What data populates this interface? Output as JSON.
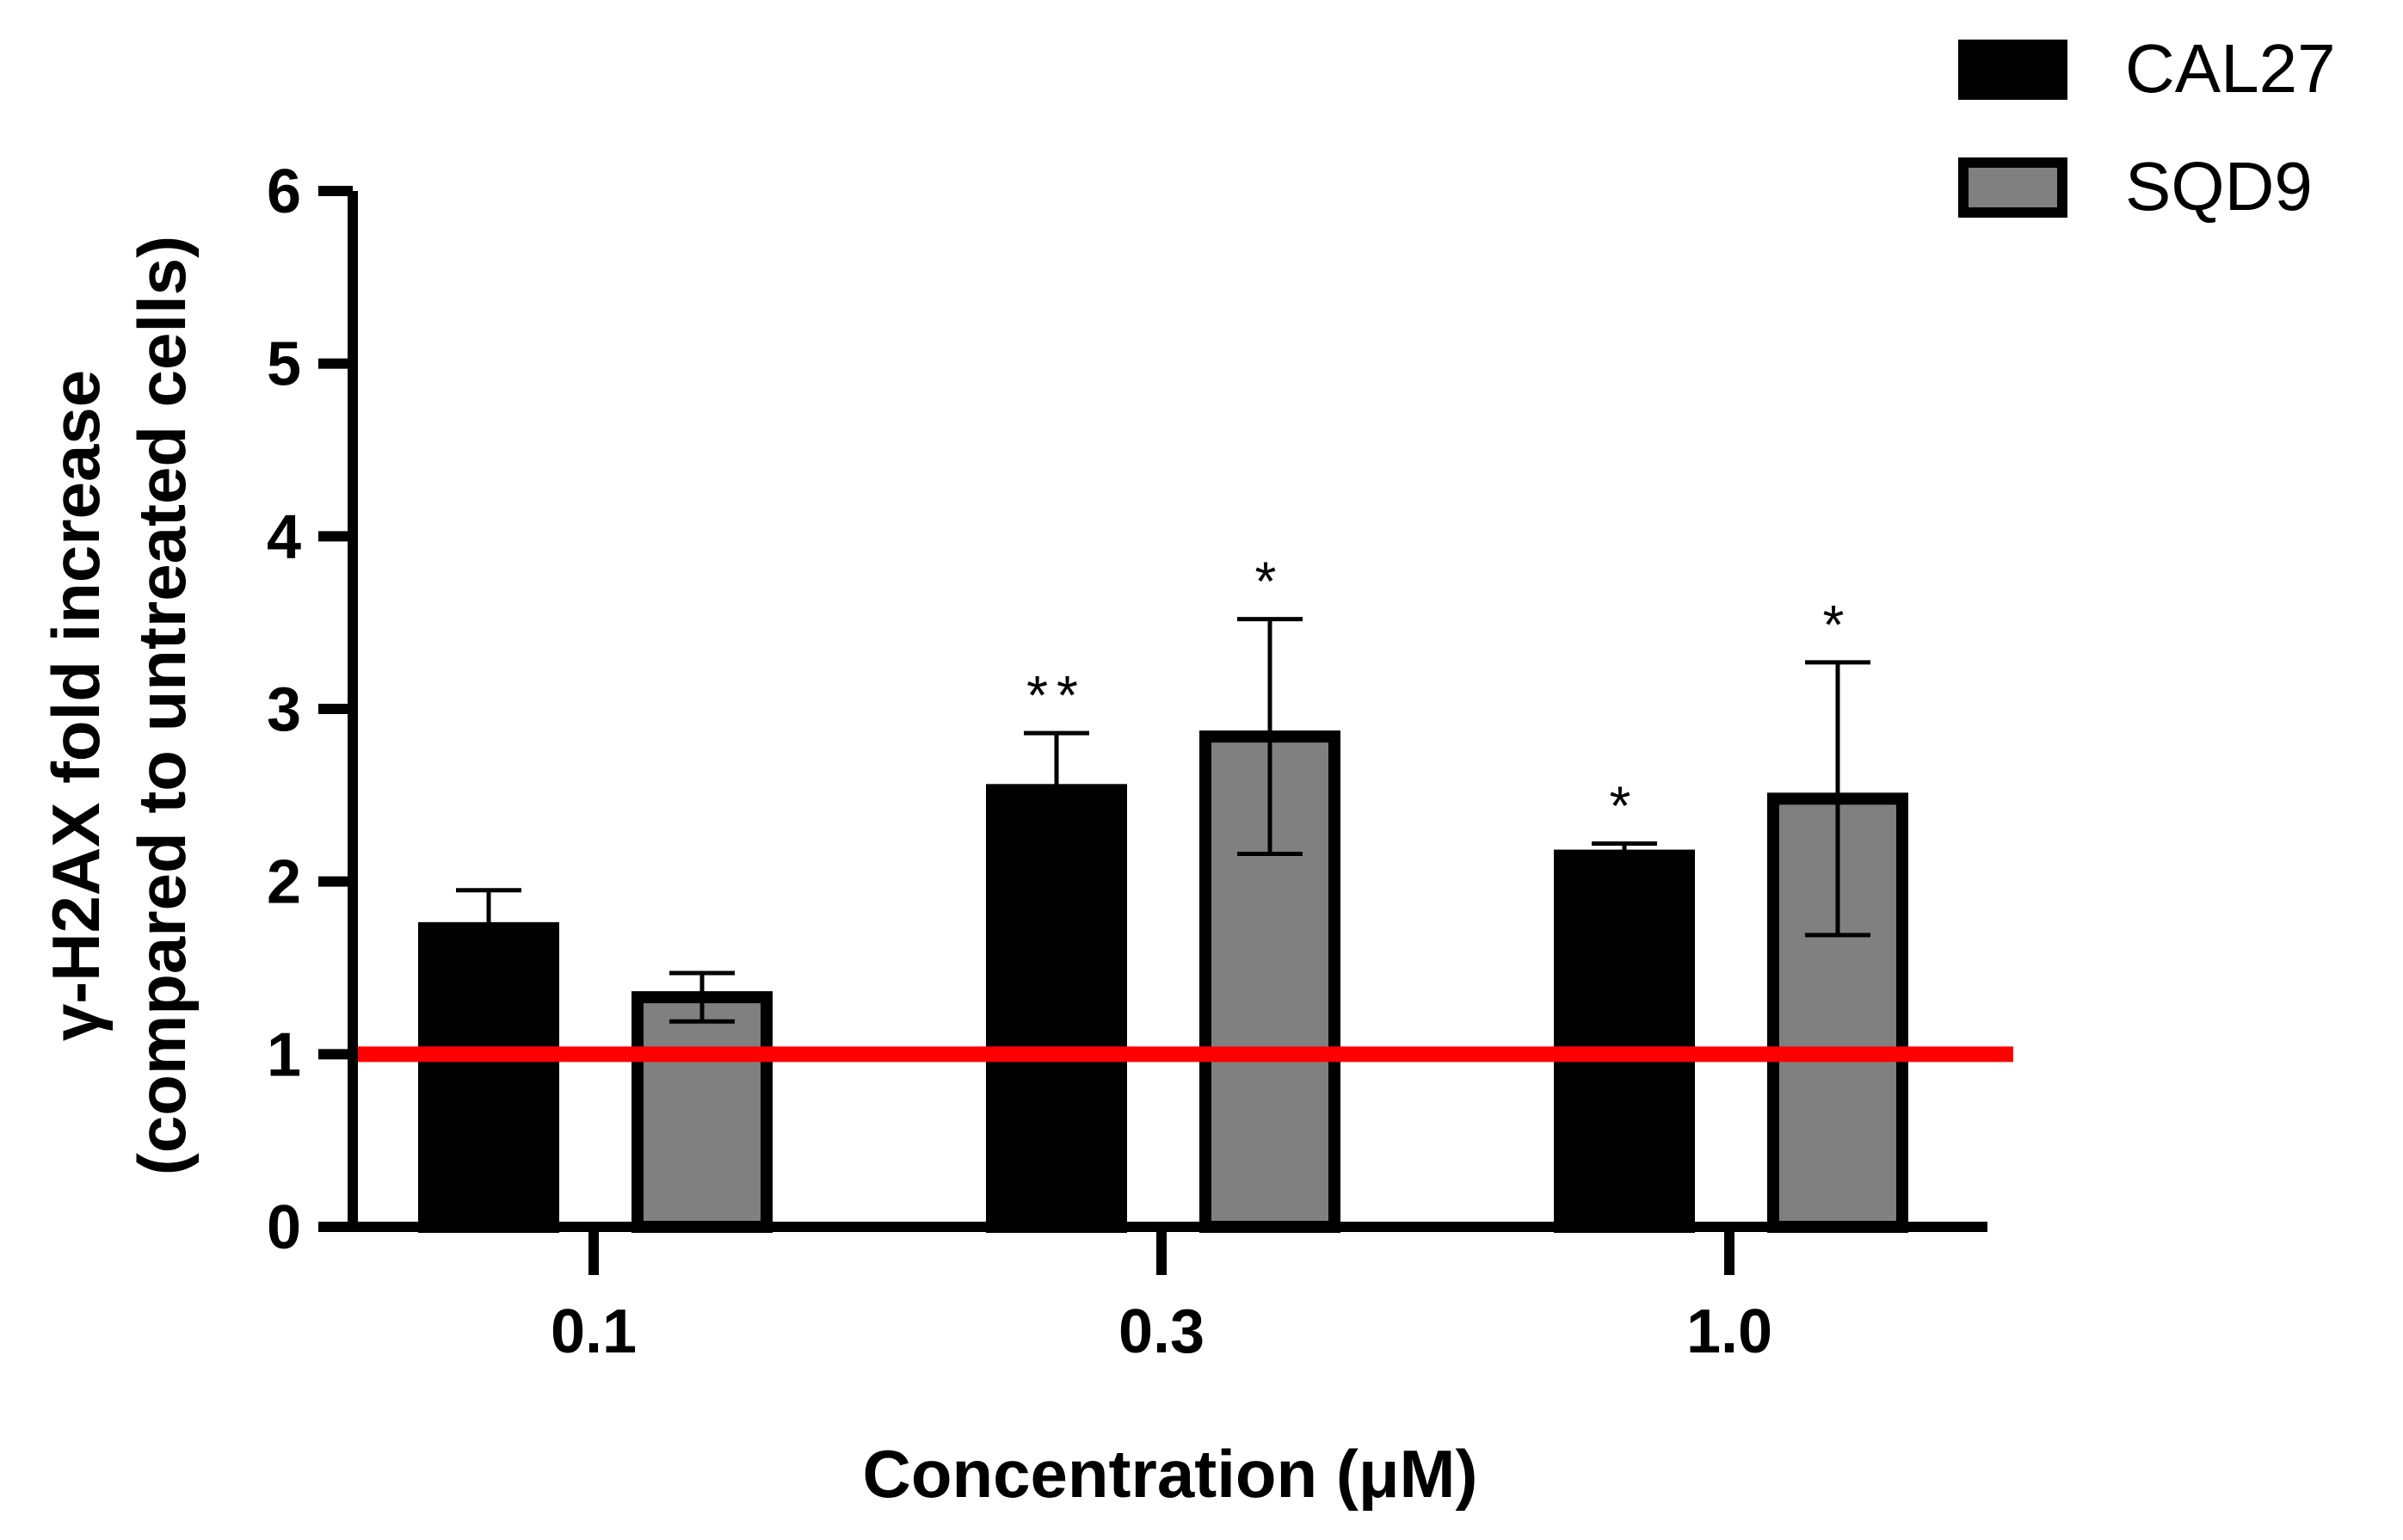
{
  "chart_data": {
    "type": "bar",
    "title": "",
    "xlabel": "Concentration (μM)",
    "ylabel_line1": "γ-H2AX fold increase",
    "ylabel_line2": "(compared to untreated cells)",
    "ylim": [
      0,
      6
    ],
    "yticks": [
      "0",
      "1",
      "2",
      "3",
      "4",
      "5",
      "6"
    ],
    "categories": [
      "0.1",
      "0.3",
      "1.0"
    ],
    "series": [
      {
        "name": "CAL27",
        "color": "#000000",
        "values": [
          1.73,
          2.53,
          2.15
        ],
        "errors": [
          0.22,
          0.33,
          0.07
        ],
        "sig": [
          "",
          "**",
          "*"
        ]
      },
      {
        "name": "SQD9",
        "color": "#808080",
        "values": [
          1.33,
          2.84,
          2.48
        ],
        "errors": [
          0.14,
          0.68,
          0.79
        ],
        "sig": [
          "",
          "*",
          "*"
        ]
      }
    ],
    "reference_line": {
      "value": 1.0,
      "color": "#ff0000"
    },
    "legend": "top-right"
  }
}
